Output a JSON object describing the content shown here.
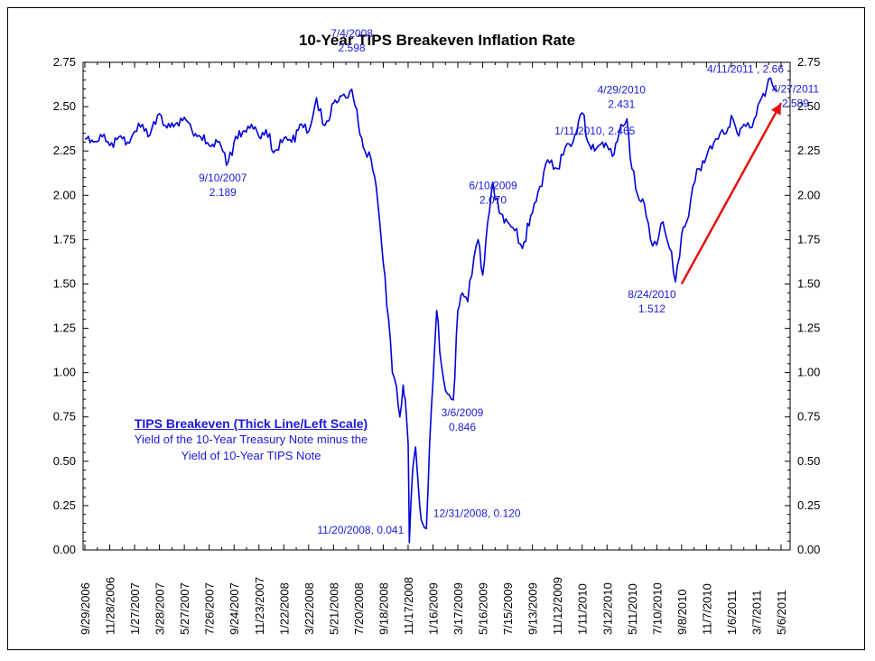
{
  "chart_data": {
    "type": "line",
    "title": "10-Year TIPS Breakeven Inflation Rate",
    "xlabel": "",
    "ylabel": "",
    "ylim": [
      0,
      2.75
    ],
    "yticks": [
      "0.00",
      "0.25",
      "0.50",
      "0.75",
      "1.00",
      "1.25",
      "1.50",
      "1.75",
      "2.00",
      "2.25",
      "2.50",
      "2.75"
    ],
    "x_tick_labels": [
      "9/29/2006",
      "11/28/2006",
      "1/27/2007",
      "3/28/2007",
      "5/27/2007",
      "7/26/2007",
      "9/24/2007",
      "11/23/2007",
      "1/22/2008",
      "3/22/2008",
      "5/21/2008",
      "7/20/2008",
      "9/18/2008",
      "11/17/2008",
      "1/16/2009",
      "3/17/2009",
      "5/16/2009",
      "7/15/2009",
      "9/13/2009",
      "11/12/2009",
      "1/11/2010",
      "3/12/2010",
      "5/11/2010",
      "7/10/2010",
      "9/8/2010",
      "11/7/2010",
      "1/6/2011",
      "3/7/2011",
      "5/6/2011"
    ],
    "grid": false,
    "series": [
      {
        "color": "#0000dd",
        "x": [
          "2006-09-29",
          "2006-10-20",
          "2006-11-10",
          "2006-11-28",
          "2006-12-20",
          "2007-01-10",
          "2007-01-27",
          "2007-02-15",
          "2007-03-05",
          "2007-03-28",
          "2007-04-15",
          "2007-05-05",
          "2007-05-27",
          "2007-06-15",
          "2007-07-05",
          "2007-07-26",
          "2007-08-15",
          "2007-09-10",
          "2007-09-24",
          "2007-10-15",
          "2007-11-05",
          "2007-11-23",
          "2007-12-10",
          "2007-12-28",
          "2008-01-22",
          "2008-02-10",
          "2008-03-01",
          "2008-03-22",
          "2008-04-10",
          "2008-04-25",
          "2008-05-10",
          "2008-05-21",
          "2008-06-10",
          "2008-06-25",
          "2008-07-04",
          "2008-07-20",
          "2008-08-05",
          "2008-08-20",
          "2008-09-01",
          "2008-09-18",
          "2008-10-01",
          "2008-10-10",
          "2008-10-20",
          "2008-10-28",
          "2008-11-05",
          "2008-11-10",
          "2008-11-17",
          "2008-11-20",
          "2008-11-28",
          "2008-12-05",
          "2008-12-15",
          "2008-12-22",
          "2008-12-31",
          "2009-01-08",
          "2009-01-16",
          "2009-01-25",
          "2009-02-05",
          "2009-02-15",
          "2009-03-06",
          "2009-03-17",
          "2009-03-28",
          "2009-04-10",
          "2009-04-25",
          "2009-05-05",
          "2009-05-16",
          "2009-05-28",
          "2009-06-10",
          "2009-06-25",
          "2009-07-15",
          "2009-08-01",
          "2009-08-20",
          "2009-09-13",
          "2009-10-01",
          "2009-10-20",
          "2009-11-12",
          "2009-12-01",
          "2009-12-20",
          "2010-01-11",
          "2010-01-25",
          "2010-02-10",
          "2010-03-01",
          "2010-03-12",
          "2010-03-25",
          "2010-04-10",
          "2010-04-29",
          "2010-05-11",
          "2010-05-25",
          "2010-06-10",
          "2010-06-25",
          "2010-07-10",
          "2010-07-25",
          "2010-08-10",
          "2010-08-24",
          "2010-09-08",
          "2010-09-20",
          "2010-10-05",
          "2010-10-20",
          "2010-11-07",
          "2010-11-25",
          "2010-12-10",
          "2010-12-25",
          "2011-01-06",
          "2011-01-20",
          "2011-02-05",
          "2011-02-20",
          "2011-03-07",
          "2011-03-20",
          "2011-04-01",
          "2011-04-11",
          "2011-04-20",
          "2011-04-27"
        ],
        "values": [
          2.32,
          2.3,
          2.33,
          2.28,
          2.33,
          2.3,
          2.36,
          2.4,
          2.34,
          2.46,
          2.38,
          2.4,
          2.44,
          2.36,
          2.33,
          2.28,
          2.3,
          2.19,
          2.3,
          2.36,
          2.4,
          2.33,
          2.37,
          2.24,
          2.32,
          2.3,
          2.4,
          2.36,
          2.55,
          2.4,
          2.42,
          2.52,
          2.56,
          2.55,
          2.598,
          2.4,
          2.25,
          2.2,
          2.05,
          1.62,
          1.3,
          1.0,
          0.92,
          0.75,
          0.93,
          0.85,
          0.6,
          0.041,
          0.45,
          0.58,
          0.25,
          0.15,
          0.12,
          0.6,
          0.95,
          1.35,
          1.05,
          0.9,
          0.846,
          1.35,
          1.45,
          1.4,
          1.65,
          1.75,
          1.55,
          1.85,
          2.07,
          1.9,
          1.85,
          1.8,
          1.7,
          1.9,
          2.05,
          2.2,
          2.15,
          2.27,
          2.3,
          2.465,
          2.3,
          2.25,
          2.3,
          2.28,
          2.22,
          2.35,
          2.431,
          2.15,
          2.0,
          1.95,
          1.75,
          1.72,
          1.85,
          1.7,
          1.512,
          1.78,
          1.85,
          2.05,
          2.15,
          2.22,
          2.3,
          2.35,
          2.35,
          2.45,
          2.35,
          2.4,
          2.38,
          2.45,
          2.55,
          2.6,
          2.66,
          2.6,
          2.589
        ]
      }
    ],
    "annotations": [
      {
        "date": "2007-09-10",
        "value": 2.189,
        "line1": "9/10/2007",
        "line2": "2.189"
      },
      {
        "date": "2008-07-04",
        "value": 2.598,
        "line1": "7/4/2008",
        "line2": "2.598"
      },
      {
        "date": "2008-11-20",
        "value": 0.041,
        "line1": "11/20/2008, 0.041",
        "line2": ""
      },
      {
        "date": "2008-12-31",
        "value": 0.12,
        "line1": "12/31/2008, 0.120",
        "line2": ""
      },
      {
        "date": "2009-03-06",
        "value": 0.846,
        "line1": "3/6/2009",
        "line2": "0.846"
      },
      {
        "date": "2009-06-10",
        "value": 2.07,
        "line1": "6/10/2009",
        "line2": "2.070"
      },
      {
        "date": "2010-01-11",
        "value": 2.465,
        "line1": "1/11/2010, 2.465",
        "line2": ""
      },
      {
        "date": "2010-04-29",
        "value": 2.431,
        "line1": "4/29/2010",
        "line2": "2.431"
      },
      {
        "date": "2010-08-24",
        "value": 1.512,
        "line1": "8/24/2010",
        "line2": "1.512"
      },
      {
        "date": "2011-04-11",
        "value": 2.66,
        "line1": "4/11/2011 , 2.66",
        "line2": ""
      },
      {
        "date": "2011-04-27",
        "value": 2.589,
        "line1": "4/27/2011",
        "line2": "2.589"
      }
    ],
    "trend_arrow": {
      "color": "#e81010",
      "from": {
        "date": "2010-09-08",
        "value": 1.5
      },
      "to": {
        "date": "2011-05-06",
        "value": 2.52
      }
    },
    "legend": {
      "title": "TIPS Breakeven (Thick Line/Left Scale)",
      "line1": "Yield of the 10-Year Treasury Note minus the",
      "line2": "Yield of 10-Year TIPS Note"
    }
  }
}
